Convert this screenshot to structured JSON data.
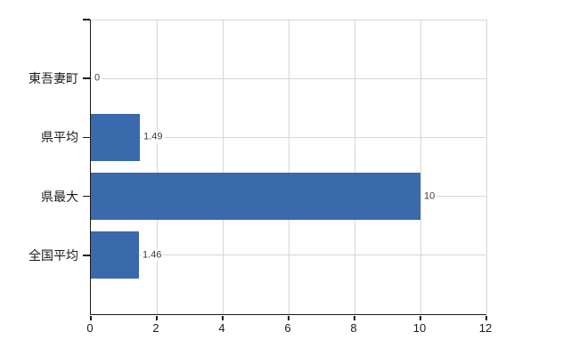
{
  "chart_data": {
    "type": "bar",
    "orientation": "horizontal",
    "title": "",
    "categories": [
      "東吾妻町",
      "県平均",
      "県最大",
      "全国平均"
    ],
    "values": [
      0,
      1.49,
      10,
      1.46
    ],
    "value_labels": [
      "0",
      "1.49",
      "10",
      "1.46"
    ],
    "xlim": [
      0,
      12
    ],
    "x_tick_values": [
      0,
      2,
      4,
      6,
      8,
      10,
      12
    ],
    "x_tick_labels": [
      "0",
      "2",
      "4",
      "6",
      "8",
      "10",
      "12"
    ],
    "grid": true,
    "legend": false,
    "colors": {
      "bar": "#3a69ac",
      "grid": "#d6d6d6",
      "axis": "#1a1a1a",
      "category_label": "#1a1a1a",
      "value_label": "#3c3c3c",
      "x_tick_label": "#1a1a1a",
      "background": "#ffffff"
    }
  }
}
